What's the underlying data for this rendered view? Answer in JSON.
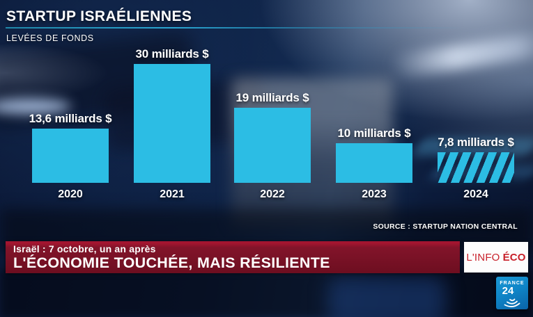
{
  "header": {
    "title": "STARTUP ISRAÉLIENNES",
    "subtitle": "LEVÉES DE FONDS"
  },
  "chart_data": {
    "type": "bar",
    "title": "Startup israéliennes — levées de fonds",
    "unit": "milliards de dollars US",
    "categories": [
      "2020",
      "2021",
      "2022",
      "2023",
      "2024"
    ],
    "values": [
      13.6,
      30,
      19,
      10,
      7.8
    ],
    "value_labels": [
      "13,6 milliards $",
      "30 milliards $",
      "19 milliards $",
      "10 milliards $",
      "7,8 milliards $"
    ],
    "hatched_categories": [
      "2024"
    ],
    "ylim": [
      0,
      32
    ],
    "grid": false,
    "legend": "none",
    "source": "SOURCE : STARTUP NATION CENTRAL"
  },
  "banner": {
    "kicker": "Israël : 7 octobre, un an après",
    "headline": "L'ÉCONOMIE TOUCHÉE, MAIS RÉSILIENTE"
  },
  "badge": {
    "prefix": "L'INFO",
    "emphasis": "ÉCO"
  },
  "logo": {
    "name": "FRANCE 24",
    "line1": "FRANCE",
    "line2": "24"
  },
  "colors": {
    "bar": "#2cbde4",
    "accent_rule": "#2aa6d2",
    "banner": "#82142a",
    "badge_text": "#c8202a",
    "logo_blue": "#0f86c8"
  }
}
